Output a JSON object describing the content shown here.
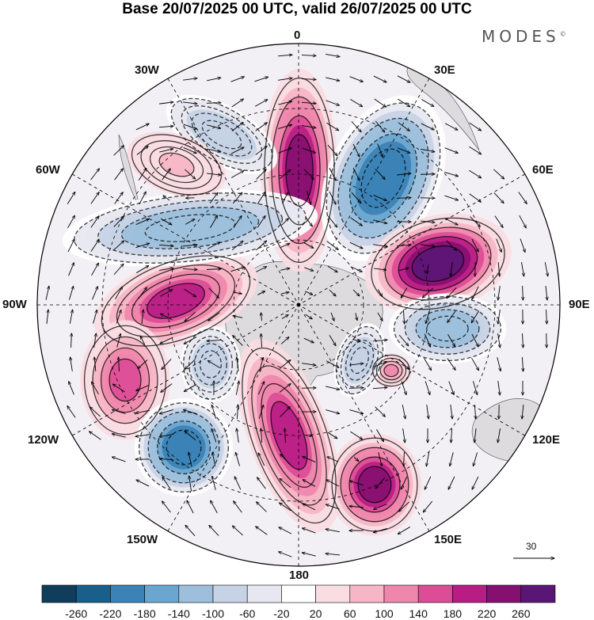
{
  "title": "Base 20/07/2025 00 UTC, valid 26/07/2025 00 UTC",
  "brand": "MODES",
  "brand_mark": "©",
  "longitude_labels": {
    "lon_0": "0",
    "lon_30e": "30E",
    "lon_60e": "60E",
    "lon_90e": "90E",
    "lon_120e": "120E",
    "lon_150e": "150E",
    "lon_180": "180",
    "lon_150w": "150W",
    "lon_120w": "120W",
    "lon_90w": "90W",
    "lon_60w": "60W",
    "lon_30w": "30W"
  },
  "vector_reference": "30",
  "colorbar": {
    "tick_labels": [
      "-260",
      "-220",
      "-180",
      "-140",
      "-100",
      "-60",
      "-20",
      "20",
      "60",
      "100",
      "140",
      "180",
      "220",
      "260"
    ],
    "colors": [
      "#0f3d5c",
      "#1a5e8a",
      "#3b82b6",
      "#6aa6cf",
      "#9dbfdc",
      "#c6d3e6",
      "#e7e7f1",
      "#ffffff",
      "#f9dde2",
      "#f6b6c6",
      "#ef86ac",
      "#dd4c97",
      "#b81d84",
      "#861070",
      "#5a1675"
    ]
  },
  "anomaly_centers": [
    {
      "sign": "positive",
      "level": 220
    },
    {
      "sign": "negative",
      "level": -220
    },
    {
      "sign": "positive",
      "level": 260
    },
    {
      "sign": "negative",
      "level": -140
    },
    {
      "sign": "positive",
      "level": 100
    },
    {
      "sign": "negative",
      "level": -100
    },
    {
      "sign": "positive",
      "level": 180
    },
    {
      "sign": "positive",
      "level": 140
    },
    {
      "sign": "negative",
      "level": -140
    },
    {
      "sign": "negative",
      "level": -100
    },
    {
      "sign": "positive",
      "level": 180
    },
    {
      "sign": "positive",
      "level": 220
    },
    {
      "sign": "negative",
      "level": -220
    },
    {
      "sign": "negative",
      "level": -100
    },
    {
      "sign": "positive",
      "level": 60
    }
  ]
}
